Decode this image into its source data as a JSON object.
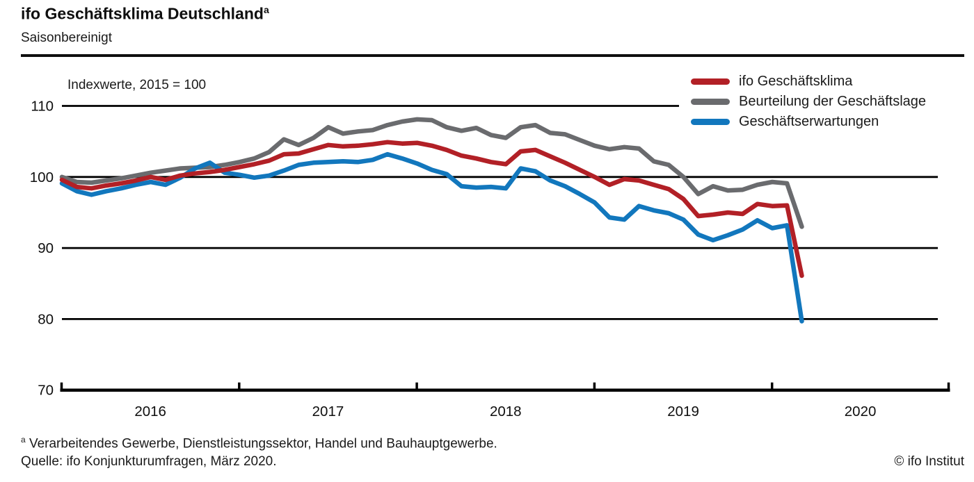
{
  "header": {
    "title": "ifo Geschäftsklima Deutschland",
    "title_superscript": "a",
    "subtitle": "Saisonbereinigt"
  },
  "chart_data": {
    "type": "line",
    "annotation": "Indexwerte, 2015 = 100",
    "frequency": "monthly",
    "x_start": "2016-01",
    "x_end": "2020-03",
    "x_tick_labels": [
      "2016",
      "2017",
      "2018",
      "2019",
      "2020"
    ],
    "y_tick_labels": [
      "110",
      "100",
      "90",
      "80",
      "70"
    ],
    "y_ticks": [
      110,
      100,
      90,
      80,
      70
    ],
    "ylim": [
      70,
      113
    ],
    "grid": "horizontal",
    "legend_position": "top-right",
    "colors": {
      "klima": "#b22026",
      "lage": "#6a6b6e",
      "erwartungen": "#1277bd"
    },
    "series": [
      {
        "id": "lage",
        "name": "Beurteilung der Geschäftslage",
        "color": "#6a6b6e",
        "values": [
          100.0,
          99.3,
          99.2,
          99.5,
          99.8,
          100.2,
          100.6,
          100.9,
          101.2,
          101.3,
          101.4,
          101.7,
          102.1,
          102.6,
          103.5,
          105.3,
          104.5,
          105.5,
          107.0,
          106.1,
          106.4,
          106.6,
          107.3,
          107.8,
          108.1,
          108.0,
          107.0,
          106.5,
          106.9,
          105.9,
          105.5,
          107.0,
          107.3,
          106.2,
          106.0,
          105.2,
          104.4,
          103.9,
          104.2,
          104.0,
          102.2,
          101.7,
          100.0,
          97.6,
          98.7,
          98.1,
          98.2,
          98.9,
          99.3,
          99.1,
          93.0
        ]
      },
      {
        "id": "erwartungen",
        "name": "Geschäftserwartungen",
        "color": "#1277bd",
        "values": [
          99.1,
          98.0,
          97.5,
          98.0,
          98.4,
          98.9,
          99.3,
          98.9,
          99.9,
          101.2,
          102.0,
          100.6,
          100.3,
          99.9,
          100.2,
          100.9,
          101.7,
          102.0,
          102.1,
          102.2,
          102.1,
          102.4,
          103.2,
          102.6,
          101.9,
          101.0,
          100.4,
          98.7,
          98.5,
          98.6,
          98.4,
          101.2,
          100.8,
          99.5,
          98.7,
          97.6,
          96.4,
          94.3,
          94.0,
          95.9,
          95.3,
          94.9,
          94.0,
          91.9,
          91.1,
          91.8,
          92.6,
          93.9,
          92.8,
          93.2,
          79.7
        ]
      },
      {
        "id": "klima",
        "name": "ifo Geschäftsklima",
        "color": "#b22026",
        "values": [
          99.6,
          98.6,
          98.4,
          98.8,
          99.1,
          99.5,
          100.0,
          99.6,
          100.2,
          100.5,
          100.7,
          101.0,
          101.4,
          101.8,
          102.3,
          103.2,
          103.3,
          103.9,
          104.5,
          104.3,
          104.4,
          104.6,
          104.9,
          104.7,
          104.8,
          104.4,
          103.8,
          103.0,
          102.6,
          102.1,
          101.8,
          103.6,
          103.8,
          102.9,
          102.0,
          101.0,
          100.0,
          98.9,
          99.7,
          99.5,
          98.9,
          98.3,
          96.9,
          94.5,
          94.7,
          95.0,
          94.8,
          96.2,
          95.9,
          96.0,
          86.1
        ]
      }
    ],
    "legend_order": [
      "klima",
      "lage",
      "erwartungen"
    ]
  },
  "legend": {
    "items": [
      {
        "label": "ifo Geschäftsklima",
        "color": "#b22026"
      },
      {
        "label": "Beurteilung der Geschäftslage",
        "color": "#6a6b6e"
      },
      {
        "label": "Geschäftserwartungen",
        "color": "#1277bd"
      }
    ]
  },
  "footer": {
    "footnote_superscript": "a",
    "footnote": " Verarbeitendes Gewerbe, Dienstleistungssektor, Handel und Bauhauptgewerbe.",
    "source": "Quelle: ifo Konjunkturumfragen, März 2020.",
    "copyright": "© ifo Institut"
  }
}
